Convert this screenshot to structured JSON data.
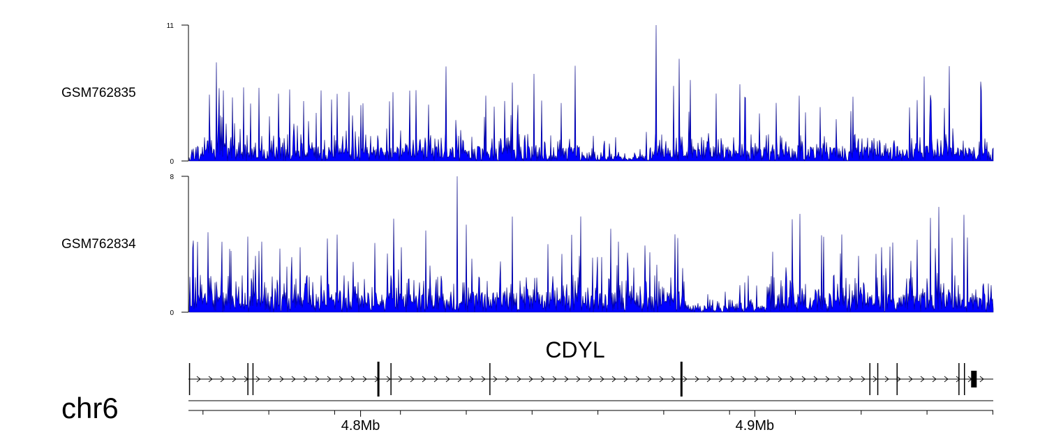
{
  "chart_data": {
    "type": "genome-browser-coverage",
    "chromosome": "chr6",
    "x_range_mb": [
      4.7565,
      4.9605
    ],
    "tracks": [
      {
        "name": "GSM762835",
        "ylim": [
          0,
          11
        ],
        "ytick_labels": [
          "11",
          "0"
        ],
        "peak": 11,
        "color": "#0000ff",
        "edge_color": "#000080"
      },
      {
        "name": "GSM762834",
        "ylim": [
          0,
          8
        ],
        "ytick_labels": [
          "8",
          "0"
        ],
        "peak": 8,
        "color": "#0000ff",
        "edge_color": "#000080"
      }
    ],
    "gene": {
      "name": "CDYL",
      "strand": "+",
      "exons_mb": [
        4.7566,
        4.7714,
        4.7727,
        4.8045,
        4.8077,
        4.8328,
        4.8814,
        4.9292,
        4.9312,
        4.9361,
        4.9518,
        4.9532,
        4.9556
      ]
    },
    "axis": {
      "tick_labels": [
        "4.8Mb",
        "4.9Mb"
      ],
      "tick_values_mb": [
        4.8,
        4.9
      ],
      "minor_step_mb": 0.0167
    }
  }
}
